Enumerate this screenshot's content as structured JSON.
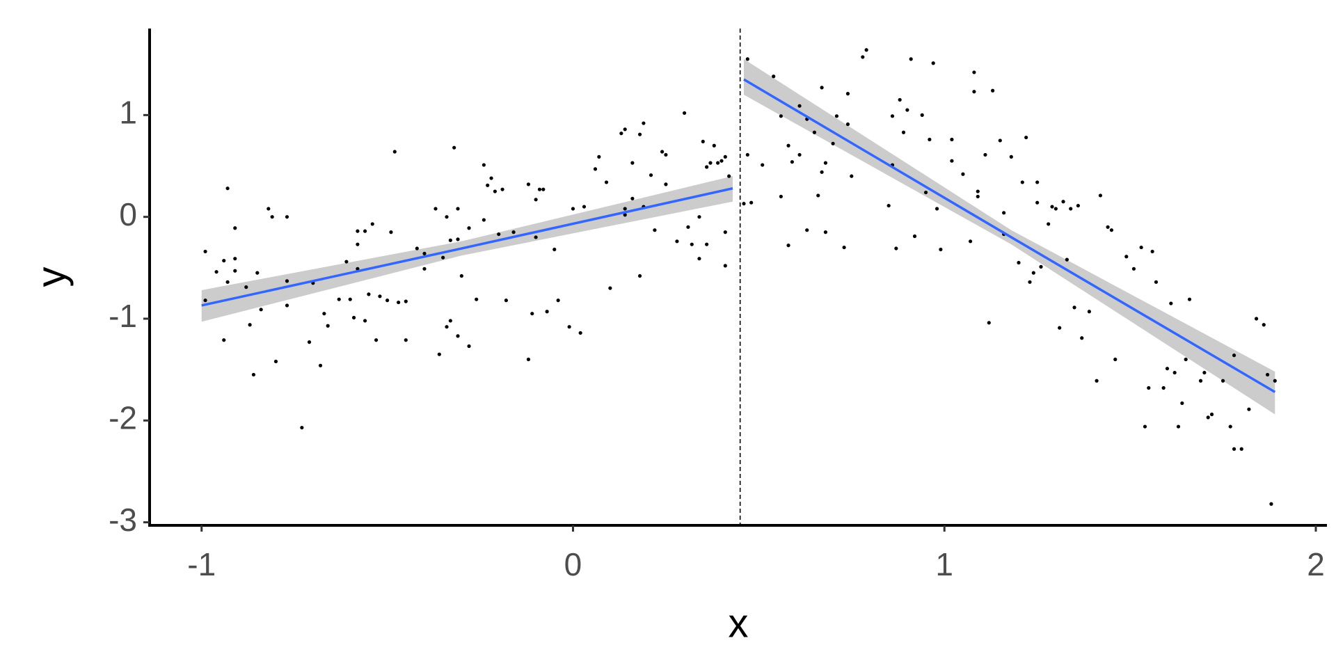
{
  "chart_data": {
    "type": "scatter",
    "xlabel": "x",
    "ylabel": "y",
    "xlim": [
      -1.14,
      2.03
    ],
    "ylim": [
      -3.03,
      1.85
    ],
    "xticks": [
      -1,
      0,
      1,
      2
    ],
    "yticks": [
      -3,
      -2,
      -1,
      0,
      1
    ],
    "points": {
      "color": "#000000",
      "x": [
        -0.99,
        -0.99,
        -0.96,
        -0.94,
        -0.93,
        -0.93,
        -0.94,
        -0.91,
        -0.91,
        -0.91,
        -0.88,
        -0.87,
        -0.86,
        -0.85,
        -0.84,
        -0.82,
        -0.81,
        -0.8,
        -0.77,
        -0.77,
        -0.77,
        -0.73,
        -0.71,
        -0.7,
        -0.68,
        -0.67,
        -0.66,
        -0.63,
        -0.61,
        -0.6,
        -0.59,
        -0.58,
        -0.58,
        -0.58,
        -0.56,
        -0.56,
        -0.55,
        -0.54,
        -0.53,
        -0.52,
        -0.5,
        -0.49,
        -0.48,
        -0.47,
        -0.45,
        -0.45,
        -0.42,
        -0.4,
        -0.4,
        -0.37,
        -0.36,
        -0.35,
        -0.34,
        -0.34,
        -0.33,
        -0.33,
        -0.32,
        -0.31,
        -0.31,
        -0.31,
        -0.3,
        -0.28,
        -0.28,
        -0.26,
        -0.24,
        -0.24,
        -0.23,
        -0.22,
        -0.21,
        -0.2,
        -0.19,
        -0.18,
        -0.16,
        -0.12,
        -0.12,
        -0.11,
        -0.1,
        -0.1,
        -0.09,
        -0.08,
        -0.07,
        -0.05,
        -0.04,
        -0.01,
        0.0,
        0.02,
        0.03,
        0.06,
        0.07,
        0.09,
        0.1,
        0.13,
        0.14,
        0.14,
        0.14,
        0.16,
        0.16,
        0.18,
        0.18,
        0.19,
        0.19,
        0.21,
        0.22,
        0.24,
        0.25,
        0.25,
        0.28,
        0.3,
        0.31,
        0.32,
        0.34,
        0.34,
        0.35,
        0.36,
        0.36,
        0.37,
        0.38,
        0.39,
        0.4,
        0.41,
        0.41,
        0.41,
        0.42,
        0.47,
        0.46,
        0.47,
        0.48,
        0.51,
        0.54,
        0.56,
        0.56,
        0.58,
        0.58,
        0.59,
        0.61,
        0.61,
        0.63,
        0.63,
        0.65,
        0.66,
        0.67,
        0.67,
        0.68,
        0.68,
        0.7,
        0.71,
        0.73,
        0.74,
        0.74,
        0.75,
        0.78,
        0.79,
        0.85,
        0.86,
        0.86,
        0.87,
        0.88,
        0.89,
        0.9,
        0.91,
        0.92,
        0.94,
        0.95,
        0.96,
        0.97,
        0.98,
        0.99,
        1.02,
        1.02,
        1.05,
        1.07,
        1.08,
        1.08,
        1.09,
        1.09,
        1.11,
        1.12,
        1.13,
        1.15,
        1.16,
        1.16,
        1.18,
        1.2,
        1.21,
        1.22,
        1.23,
        1.24,
        1.25,
        1.25,
        1.26,
        1.28,
        1.29,
        1.3,
        1.31,
        1.32,
        1.33,
        1.34,
        1.35,
        1.36,
        1.37,
        1.39,
        1.41,
        1.42,
        1.44,
        1.45,
        1.46,
        1.49,
        1.51,
        1.53,
        1.54,
        1.55,
        1.56,
        1.57,
        1.59,
        1.6,
        1.61,
        1.62,
        1.63,
        1.64,
        1.65,
        1.66,
        1.69,
        1.7,
        1.71,
        1.72,
        1.75,
        1.77,
        1.78,
        1.78,
        1.8,
        1.82,
        1.84,
        1.86,
        1.87,
        1.88,
        1.89
      ],
      "y": [
        -0.82,
        -0.34,
        -0.54,
        -0.43,
        0.28,
        -0.64,
        -1.21,
        -0.11,
        -0.41,
        -0.53,
        -0.69,
        -1.06,
        -1.55,
        -0.55,
        -0.91,
        0.08,
        0.0,
        -1.42,
        0.0,
        -0.63,
        -0.87,
        -2.07,
        -1.23,
        -0.65,
        -1.46,
        -0.95,
        -1.07,
        -0.81,
        -0.44,
        -0.81,
        -0.99,
        -0.27,
        -0.14,
        -0.51,
        -1.02,
        -0.14,
        -0.76,
        -0.07,
        -1.21,
        -0.78,
        -0.82,
        -0.15,
        0.64,
        -0.84,
        -1.21,
        -0.83,
        -0.31,
        -0.51,
        -0.36,
        0.08,
        -1.35,
        -0.4,
        -1.08,
        0.0,
        -1.02,
        -0.23,
        0.68,
        0.08,
        -1.17,
        -0.22,
        -0.58,
        -0.11,
        -1.27,
        -0.81,
        -0.03,
        0.51,
        0.31,
        0.38,
        0.25,
        -0.17,
        0.27,
        -0.82,
        -0.15,
        0.32,
        -1.4,
        -0.95,
        -0.2,
        0.17,
        0.27,
        0.27,
        -0.93,
        -0.32,
        -0.82,
        -1.08,
        0.08,
        -1.14,
        0.1,
        0.47,
        0.59,
        0.34,
        -0.7,
        0.82,
        0.02,
        0.08,
        0.86,
        0.53,
        0.18,
        -0.58,
        0.81,
        0.92,
        0.1,
        0.41,
        -0.13,
        0.64,
        0.61,
        0.32,
        -0.24,
        1.02,
        -0.1,
        -0.27,
        -0.41,
        0.0,
        0.74,
        0.49,
        -0.27,
        0.53,
        0.7,
        0.53,
        0.55,
        -0.15,
        -0.48,
        0.59,
        0.4,
        1.55,
        0.13,
        0.61,
        0.14,
        0.51,
        1.38,
        0.99,
        0.2,
        -0.28,
        0.7,
        0.54,
        1.09,
        0.61,
        0.96,
        -0.13,
        0.83,
        0.21,
        1.27,
        0.44,
        0.53,
        -0.15,
        0.72,
        0.99,
        -0.3,
        1.21,
        0.91,
        0.4,
        1.57,
        1.64,
        0.11,
        0.51,
        0.99,
        -0.31,
        1.15,
        0.83,
        1.05,
        1.55,
        -0.19,
        1.0,
        0.24,
        0.76,
        1.51,
        0.08,
        -0.32,
        0.55,
        0.76,
        0.42,
        -0.24,
        1.42,
        1.23,
        0.25,
        0.2,
        0.61,
        -1.04,
        1.24,
        0.75,
        -0.17,
        0.04,
        0.59,
        -0.45,
        0.34,
        0.78,
        -0.64,
        -0.55,
        0.34,
        0.14,
        -0.49,
        -0.07,
        0.1,
        0.08,
        -1.09,
        0.15,
        -0.42,
        0.08,
        -0.89,
        0.11,
        -1.19,
        -0.93,
        -1.61,
        0.21,
        -0.1,
        -0.13,
        -1.4,
        -0.39,
        -0.51,
        -0.3,
        -2.06,
        -1.68,
        -0.34,
        -0.64,
        -1.68,
        -1.49,
        -0.85,
        -1.53,
        -2.06,
        -1.83,
        -1.4,
        -0.81,
        -1.61,
        -1.53,
        -1.97,
        -1.94,
        -1.61,
        -2.06,
        -1.36,
        -2.28,
        -2.28,
        -1.89,
        -1.0,
        -1.06,
        -1.55,
        -2.82,
        -1.61
      ]
    },
    "fits": [
      {
        "color": "#3366ff",
        "band_color": "#cccccc",
        "x": [
          -1,
          -0.3,
          0.43
        ],
        "y": [
          -0.87,
          -0.31,
          0.28
        ],
        "lower": [
          -1.03,
          -0.38,
          0.15
        ],
        "upper": [
          -0.72,
          -0.24,
          0.4
        ]
      },
      {
        "color": "#3366ff",
        "band_color": "#cccccc",
        "x": [
          0.46,
          1.18,
          1.89
        ],
        "y": [
          1.35,
          -0.2,
          -1.72
        ],
        "lower": [
          1.2,
          -0.27,
          -1.94
        ],
        "upper": [
          1.55,
          -0.13,
          -1.52
        ]
      }
    ],
    "vline": {
      "x": 0.45,
      "color": "#000000",
      "dashed": true
    }
  }
}
